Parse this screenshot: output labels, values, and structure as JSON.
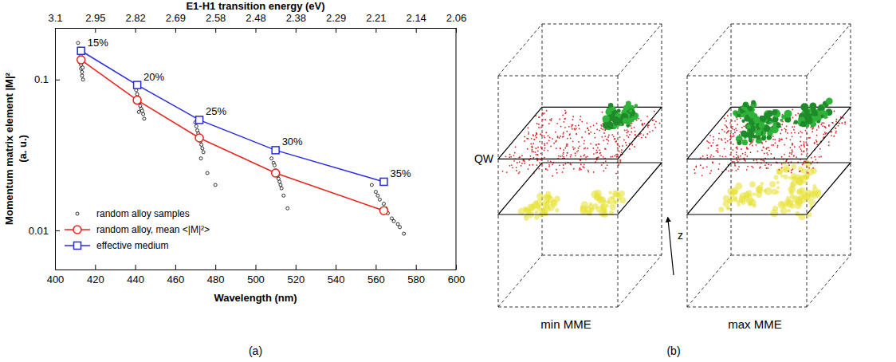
{
  "chart_data": {
    "type": "scatter",
    "panel_label": "(a)",
    "x_label": "Wavelength (nm)",
    "x2_label": "E1-H1 transition energy (eV)",
    "y_label": "Momentum matrix element |M|²",
    "y_label_2": "(a. u.)",
    "log": "y",
    "xlim": [
      400,
      600
    ],
    "xticks": [
      400,
      420,
      440,
      460,
      480,
      500,
      520,
      540,
      560,
      580,
      600
    ],
    "x2ticks": [
      {
        "value": 400,
        "label": "3.1"
      },
      {
        "value": 420,
        "label": "2.95"
      },
      {
        "value": 440,
        "label": "2.82"
      },
      {
        "value": 460,
        "label": "2.69"
      },
      {
        "value": 480,
        "label": "2.58"
      },
      {
        "value": 500,
        "label": "2.48"
      },
      {
        "value": 520,
        "label": "2.38"
      },
      {
        "value": 540,
        "label": "2.29"
      },
      {
        "value": 560,
        "label": "2.21"
      },
      {
        "value": 580,
        "label": "2.14"
      },
      {
        "value": 600,
        "label": "2.06"
      }
    ],
    "ylim": [
      0.0055,
      0.22
    ],
    "yticks": [
      0.01,
      0.1
    ],
    "legend": "lower left",
    "series": [
      {
        "name": "random alloy samples",
        "color": "#000000",
        "marker": "circle",
        "line_style": "none",
        "x": [
          411.5,
          412,
          412,
          412.5,
          412.5,
          413,
          413,
          413.5,
          413.5,
          414,
          412.8,
          413.8,
          440,
          440.5,
          441,
          441.5,
          441.5,
          442,
          442.5,
          443,
          443.5,
          444,
          444.5,
          441.8,
          470,
          470.5,
          471,
          471.5,
          472,
          472.5,
          473,
          473.5,
          474,
          472.8,
          476,
          480,
          508,
          509,
          509.5,
          510,
          510.5,
          511,
          511.5,
          512,
          512.5,
          513,
          514,
          516,
          558,
          560,
          561,
          562,
          564,
          565,
          566,
          568,
          569,
          571,
          572,
          574
        ],
        "values": [
          0.175,
          0.16,
          0.15,
          0.14,
          0.13,
          0.125,
          0.118,
          0.112,
          0.106,
          0.1,
          0.145,
          0.12,
          0.09,
          0.085,
          0.08,
          0.076,
          0.072,
          0.07,
          0.067,
          0.064,
          0.062,
          0.059,
          0.055,
          0.061,
          0.052,
          0.049,
          0.046,
          0.044,
          0.041,
          0.039,
          0.037,
          0.035,
          0.033,
          0.03,
          0.024,
          0.02,
          0.03,
          0.028,
          0.027,
          0.025,
          0.024,
          0.023,
          0.022,
          0.021,
          0.02,
          0.019,
          0.017,
          0.014,
          0.02,
          0.018,
          0.017,
          0.016,
          0.015,
          0.014,
          0.013,
          0.012,
          0.0115,
          0.011,
          0.0105,
          0.0095
        ]
      },
      {
        "name": "random alloy, mean <|M|²>",
        "color": "#e8231b",
        "marker": "circle",
        "line_style": "solid",
        "x": [
          413,
          441,
          472,
          510,
          564
        ],
        "values": [
          0.135,
          0.073,
          0.041,
          0.024,
          0.0135
        ]
      },
      {
        "name": "effective medium",
        "color": "#2a2ae0",
        "marker": "square",
        "line_style": "solid",
        "x": [
          413,
          441,
          472,
          510,
          564
        ],
        "values": [
          0.155,
          0.092,
          0.054,
          0.034,
          0.021
        ],
        "point_labels": [
          "15%",
          "20%",
          "25%",
          "30%",
          "35%"
        ]
      }
    ]
  },
  "panel_b": {
    "label": "(b)",
    "qw_label": "QW",
    "z_label": "z",
    "captions": [
      "min MME",
      "max MME"
    ]
  }
}
